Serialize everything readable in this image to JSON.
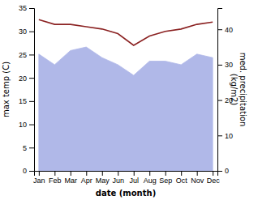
{
  "chart_data": {
    "type": "line",
    "xlabel": "date (month)",
    "ylabel": "max temp (C)",
    "y2label": "med. precipitation\n(kg/m2)",
    "categories": [
      "Jan",
      "Feb",
      "Mar",
      "Apr",
      "May",
      "Jun",
      "Jul",
      "Aug",
      "Sep",
      "Oct",
      "Nov",
      "Dec"
    ],
    "series": [
      {
        "type": "area",
        "axis": "y2",
        "color": "#b0b8e8",
        "values": [
          33,
          30,
          34,
          35,
          32,
          30,
          27,
          31,
          31,
          30,
          33,
          32
        ]
      },
      {
        "type": "line",
        "color": "#8b2222",
        "values": [
          32.5,
          31.5,
          31.5,
          31.0,
          30.5,
          29.5,
          27.0,
          29.0,
          30.0,
          30.5,
          31.5,
          32.0
        ]
      }
    ],
    "ylim": [
      0,
      35
    ],
    "yticks": [
      0,
      5,
      10,
      15,
      20,
      25,
      30,
      35
    ],
    "y2lim": [
      0,
      46
    ],
    "y2ticks": [
      0,
      10,
      20,
      30,
      40
    ]
  }
}
